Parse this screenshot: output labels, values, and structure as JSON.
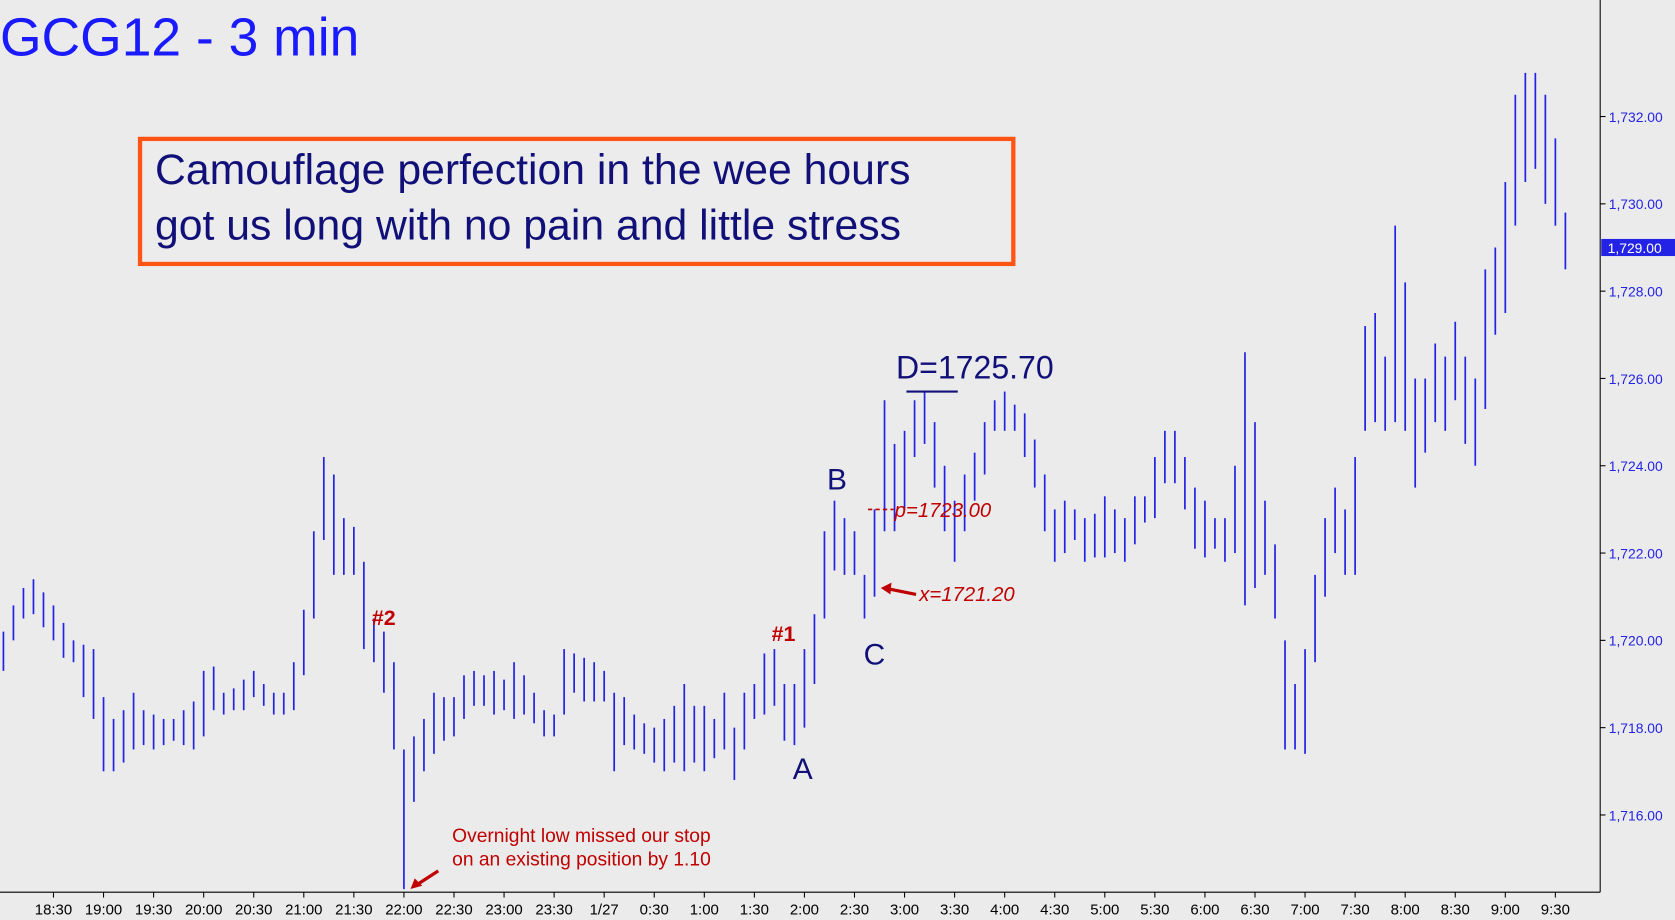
{
  "chart_data": {
    "type": "range-bar",
    "title": "GCG12 - 3 min",
    "callout": [
      "Camouflage perfection in the wee hours",
      "got us long with no pain and little stress"
    ],
    "color": "#2323e6",
    "categories": [
      null,
      null,
      null,
      null,
      null,
      "18:30",
      null,
      null,
      null,
      null,
      "19:00",
      null,
      null,
      null,
      null,
      "19:30",
      null,
      null,
      null,
      null,
      "20:00",
      null,
      null,
      null,
      null,
      "20:30",
      null,
      null,
      null,
      null,
      "21:00",
      null,
      null,
      null,
      null,
      "21:30",
      null,
      null,
      null,
      null,
      "22:00",
      null,
      null,
      null,
      null,
      "22:30",
      null,
      null,
      null,
      null,
      "23:00",
      null,
      null,
      null,
      null,
      "23:30",
      null,
      null,
      null,
      null,
      "1/27",
      null,
      null,
      null,
      null,
      "0:30",
      null,
      null,
      null,
      null,
      "1:00",
      null,
      null,
      null,
      null,
      "1:30",
      null,
      null,
      null,
      null,
      "2:00",
      null,
      null,
      null,
      null,
      "2:30",
      null,
      null,
      null,
      null,
      "3:00",
      null,
      null,
      null,
      null,
      "3:30",
      null,
      null,
      null,
      null,
      "4:00",
      null,
      null,
      null,
      null,
      "4:30",
      null,
      null,
      null,
      null,
      "5:00",
      null,
      null,
      null,
      null,
      "5:30",
      null,
      null,
      null,
      null,
      "6:00",
      null,
      null,
      null,
      null,
      "6:30",
      null,
      null,
      null,
      null,
      "7:00",
      null,
      null,
      null,
      null,
      "7:30",
      null,
      null,
      null,
      null,
      "8:00",
      null,
      null,
      null,
      null,
      "8:30",
      null,
      null,
      null,
      null,
      "9:00",
      null,
      null,
      null,
      null,
      "9:30",
      null
    ],
    "high": [
      1720.2,
      1720.8,
      1721.2,
      1721.4,
      1721.1,
      1720.8,
      1720.4,
      1720,
      1719.9,
      1719.8,
      1718.7,
      1718.2,
      1718.4,
      1718.8,
      1718.4,
      1718.3,
      1718.2,
      1718.2,
      1718.4,
      1718.6,
      1719.3,
      1719.4,
      1718.8,
      1718.9,
      1719.1,
      1719.3,
      1719,
      1718.8,
      1718.8,
      1719.5,
      1720.7,
      1722.5,
      1724.2,
      1723.8,
      1722.8,
      1722.6,
      1721.8,
      1720.5,
      1720.2,
      1719.5,
      1717.5,
      1717.8,
      1718.2,
      1718.8,
      1718.7,
      1718.7,
      1719.2,
      1719.3,
      1719.2,
      1719.3,
      1719.1,
      1719.5,
      1719.2,
      1718.8,
      1718.4,
      1718.3,
      1719.8,
      1719.7,
      1719.6,
      1719.5,
      1719.3,
      1718.8,
      1718.7,
      1718.3,
      1718.1,
      1718,
      1718.2,
      1718.5,
      1719,
      1718.5,
      1718.5,
      1718.2,
      1718.8,
      1718,
      1718.8,
      1719,
      1719.7,
      1719.8,
      1719,
      1719,
      1719.8,
      1720.6,
      1722.5,
      1723.2,
      1722.8,
      1722.5,
      1721.5,
      1723,
      1725.5,
      1724.5,
      1724.8,
      1725.5,
      1725.7,
      1725,
      1724,
      1723.2,
      1723.8,
      1724.3,
      1725,
      1725.5,
      1725.7,
      1725.4,
      1725.2,
      1724.6,
      1723.8,
      1723,
      1723.2,
      1723,
      1722.8,
      1722.9,
      1723.3,
      1723,
      1722.8,
      1723.3,
      1723.3,
      1724.2,
      1724.8,
      1724.8,
      1724.2,
      1723.5,
      1723.2,
      1722.8,
      1722.8,
      1724,
      1726.6,
      1725,
      1723.2,
      1722.2,
      1720,
      1719,
      1719.8,
      1721.5,
      1722.8,
      1723.5,
      1723,
      1724.2,
      1727.2,
      1727.5,
      1726.5,
      1729.5,
      1728.2,
      1726,
      1726,
      1726.8,
      1726.5,
      1727.3,
      1726.5,
      1726,
      1728.5,
      1729,
      1730.5,
      1732.5,
      1733,
      1733,
      1732.5,
      1731.5,
      1729.8
    ],
    "low": [
      1719.3,
      1720,
      1720.5,
      1720.6,
      1720.3,
      1720,
      1719.6,
      1719.5,
      1718.7,
      1718.2,
      1717,
      1717,
      1717.2,
      1717.5,
      1717.6,
      1717.5,
      1717.6,
      1717.7,
      1717.6,
      1717.5,
      1717.8,
      1718.4,
      1718.3,
      1718.4,
      1718.4,
      1718.7,
      1718.5,
      1718.3,
      1718.3,
      1718.4,
      1719.2,
      1720.5,
      1722.3,
      1721.5,
      1721.5,
      1721.5,
      1719.8,
      1719.5,
      1718.8,
      1717.5,
      1714.3,
      1716.3,
      1717,
      1717.4,
      1717.7,
      1717.8,
      1718.2,
      1718.5,
      1718.5,
      1718.3,
      1718.4,
      1718.2,
      1718.3,
      1718.1,
      1717.8,
      1717.8,
      1718.3,
      1718.8,
      1718.6,
      1718.6,
      1718.6,
      1717,
      1717.6,
      1717.5,
      1717.4,
      1717.2,
      1717,
      1717.2,
      1717,
      1717.2,
      1717,
      1717.3,
      1717.5,
      1716.8,
      1717.5,
      1718.2,
      1718.3,
      1718.5,
      1717.7,
      1717.6,
      1718,
      1719,
      1720.5,
      1721.6,
      1721.5,
      1721.5,
      1720.5,
      1721,
      1722.5,
      1722.5,
      1723,
      1724.2,
      1724.5,
      1723.5,
      1722.5,
      1721.8,
      1722.5,
      1723.2,
      1723.8,
      1724.8,
      1724.8,
      1724.8,
      1724.2,
      1723.5,
      1722.5,
      1721.8,
      1722,
      1722.3,
      1721.8,
      1721.9,
      1721.9,
      1722,
      1721.8,
      1722.2,
      1722.7,
      1722.8,
      1723.6,
      1723.6,
      1723,
      1722.1,
      1721.9,
      1722.1,
      1721.8,
      1722,
      1720.8,
      1721.2,
      1721.5,
      1720.5,
      1717.5,
      1717.5,
      1717.4,
      1719.5,
      1721,
      1722,
      1721.5,
      1721.5,
      1724.8,
      1725,
      1724.8,
      1725,
      1724.8,
      1723.5,
      1724.3,
      1725,
      1724.8,
      1725.5,
      1724.5,
      1724,
      1725.3,
      1727,
      1727.5,
      1729.5,
      1730.5,
      1730.8,
      1730,
      1729.5,
      1728.5
    ],
    "ylim": [
      1714.23,
      1734.67
    ],
    "yticks": [
      {
        "value": 1716,
        "label": "1,716.00"
      },
      {
        "value": 1718,
        "label": "1,718.00"
      },
      {
        "value": 1720,
        "label": "1,720.00"
      },
      {
        "value": 1722,
        "label": "1,722.00"
      },
      {
        "value": 1724,
        "label": "1,724.00"
      },
      {
        "value": 1726,
        "label": "1,726.00"
      },
      {
        "value": 1728,
        "label": "1,728.00"
      },
      {
        "value": 1730,
        "label": "1,730.00"
      },
      {
        "value": 1732,
        "label": "1,732.00"
      }
    ],
    "last_price": {
      "value": 1729,
      "label": "1,729.00"
    },
    "levels": [
      {
        "value": 1725.7,
        "label": "D=1725.70"
      },
      {
        "value": 1723,
        "label": "p=1723.00"
      },
      {
        "value": 1721.2,
        "label": "x=1721.20"
      }
    ],
    "annotations": [
      "B",
      "A",
      "C",
      "#1",
      "#2"
    ],
    "note": [
      "Overnight low missed our stop",
      "on an existing position by 1.10"
    ]
  }
}
